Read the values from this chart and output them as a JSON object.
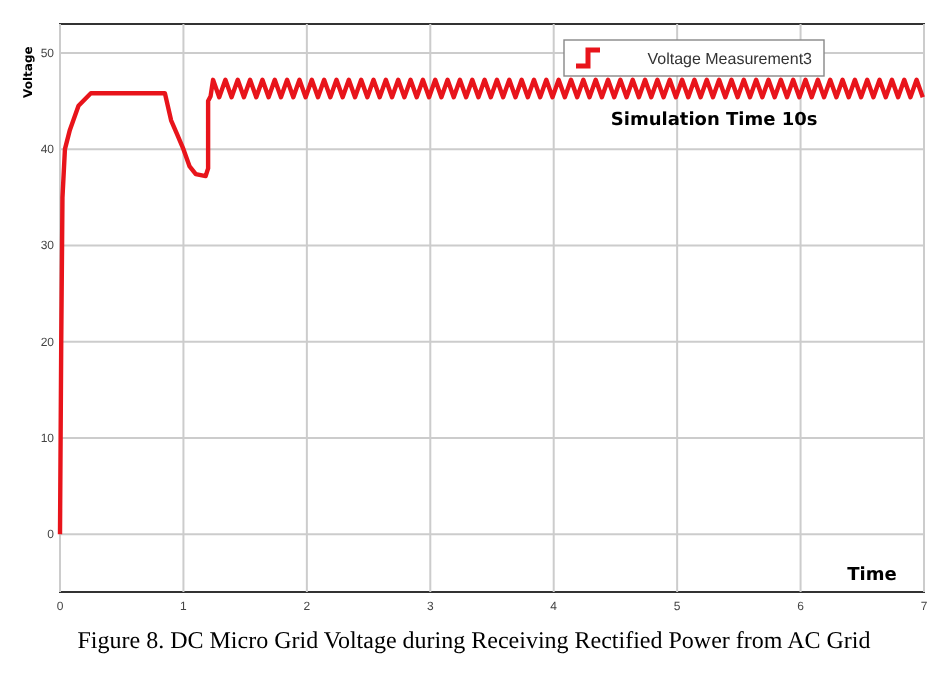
{
  "chart_data": {
    "type": "line",
    "title": "Figure 8. DC Micro Grid Voltage during Receiving Rectified Power from AC Grid",
    "xlabel": "Time",
    "ylabel": "Voltage",
    "annotations": [
      "Simulation Time 10s"
    ],
    "xlim": [
      0,
      7
    ],
    "xticks": [
      0,
      1,
      2,
      3,
      4,
      5,
      6,
      7
    ],
    "ylim": [
      -6,
      53
    ],
    "yticks": [
      0,
      10,
      20,
      30,
      40,
      50
    ],
    "grid": true,
    "legend": "top right",
    "marker": "none",
    "line_style": "solid",
    "series": [
      {
        "name": "Voltage Measurement3",
        "color": "#e8141b",
        "x": [
          0,
          0.01,
          0.02,
          0.04,
          0.08,
          0.15,
          0.25,
          0.85,
          0.9,
          0.95,
          1.0,
          1.05,
          1.1,
          1.18,
          1.2,
          1.2,
          1.22,
          1.24,
          1.29,
          1.34,
          1.39,
          1.44,
          1.49,
          1.54,
          1.59,
          1.64,
          1.69,
          1.74,
          1.79,
          1.84,
          1.89,
          1.94,
          1.99,
          2.04,
          2.09,
          2.14,
          2.19,
          2.24,
          2.29,
          2.34,
          2.39,
          2.44,
          2.49,
          2.54,
          2.59,
          2.64,
          2.69,
          2.74,
          2.79,
          2.84,
          2.89,
          2.94,
          2.99,
          3.04,
          3.09,
          3.14,
          3.19,
          3.24,
          3.29,
          3.34,
          3.39,
          3.44,
          3.49,
          3.54,
          3.59,
          3.64,
          3.69,
          3.74,
          3.79,
          3.84,
          3.89,
          3.94,
          3.99,
          4.04,
          4.09,
          4.14,
          4.19,
          4.24,
          4.29,
          4.34,
          4.39,
          4.44,
          4.49,
          4.54,
          4.59,
          4.64,
          4.69,
          4.74,
          4.79,
          4.84,
          4.89,
          4.94,
          4.99,
          5.04,
          5.09,
          5.14,
          5.19,
          5.24,
          5.29,
          5.34,
          5.39,
          5.44,
          5.49,
          5.54,
          5.59,
          5.64,
          5.69,
          5.74,
          5.79,
          5.84,
          5.89,
          5.94,
          5.99,
          6.04,
          6.09,
          6.14,
          6.19,
          6.24,
          6.29,
          6.34,
          6.39,
          6.44,
          6.49,
          6.54,
          6.59,
          6.64,
          6.69,
          6.74,
          6.79,
          6.84,
          6.89,
          6.94,
          6.99
        ],
        "values": [
          0,
          20,
          35,
          40,
          42,
          44.5,
          45.8,
          45.8,
          43,
          41.5,
          40,
          38.2,
          37.4,
          37.2,
          38,
          45,
          45.5,
          47.2,
          45.4,
          47.2,
          45.4,
          47.2,
          45.4,
          47.2,
          45.4,
          47.2,
          45.4,
          47.2,
          45.4,
          47.2,
          45.4,
          47.2,
          45.4,
          47.2,
          45.4,
          47.2,
          45.4,
          47.2,
          45.4,
          47.2,
          45.4,
          47.2,
          45.4,
          47.2,
          45.4,
          47.2,
          45.4,
          47.2,
          45.4,
          47.2,
          45.4,
          47.2,
          45.4,
          47.2,
          45.4,
          47.2,
          45.4,
          47.2,
          45.4,
          47.2,
          45.4,
          47.2,
          45.4,
          47.2,
          45.4,
          47.2,
          45.4,
          47.2,
          45.4,
          47.2,
          45.4,
          47.2,
          45.4,
          47.2,
          45.4,
          47.2,
          45.4,
          47.2,
          45.4,
          47.2,
          45.4,
          47.2,
          45.4,
          47.2,
          45.4,
          47.2,
          45.4,
          47.2,
          45.4,
          47.2,
          45.4,
          47.2,
          45.4,
          47.2,
          45.4,
          47.2,
          45.4,
          47.2,
          45.4,
          47.2,
          45.4,
          47.2,
          45.4,
          47.2,
          45.4,
          47.2,
          45.4,
          47.2,
          45.4,
          47.2,
          45.4,
          47.2,
          45.4,
          47.2,
          45.4,
          47.2,
          45.4,
          47.2,
          45.4,
          47.2,
          45.4,
          47.2,
          45.4,
          47.2,
          45.4,
          47.2,
          45.4,
          47.2,
          45.4,
          47.2,
          45.4,
          47.2,
          45.4
        ]
      }
    ]
  }
}
